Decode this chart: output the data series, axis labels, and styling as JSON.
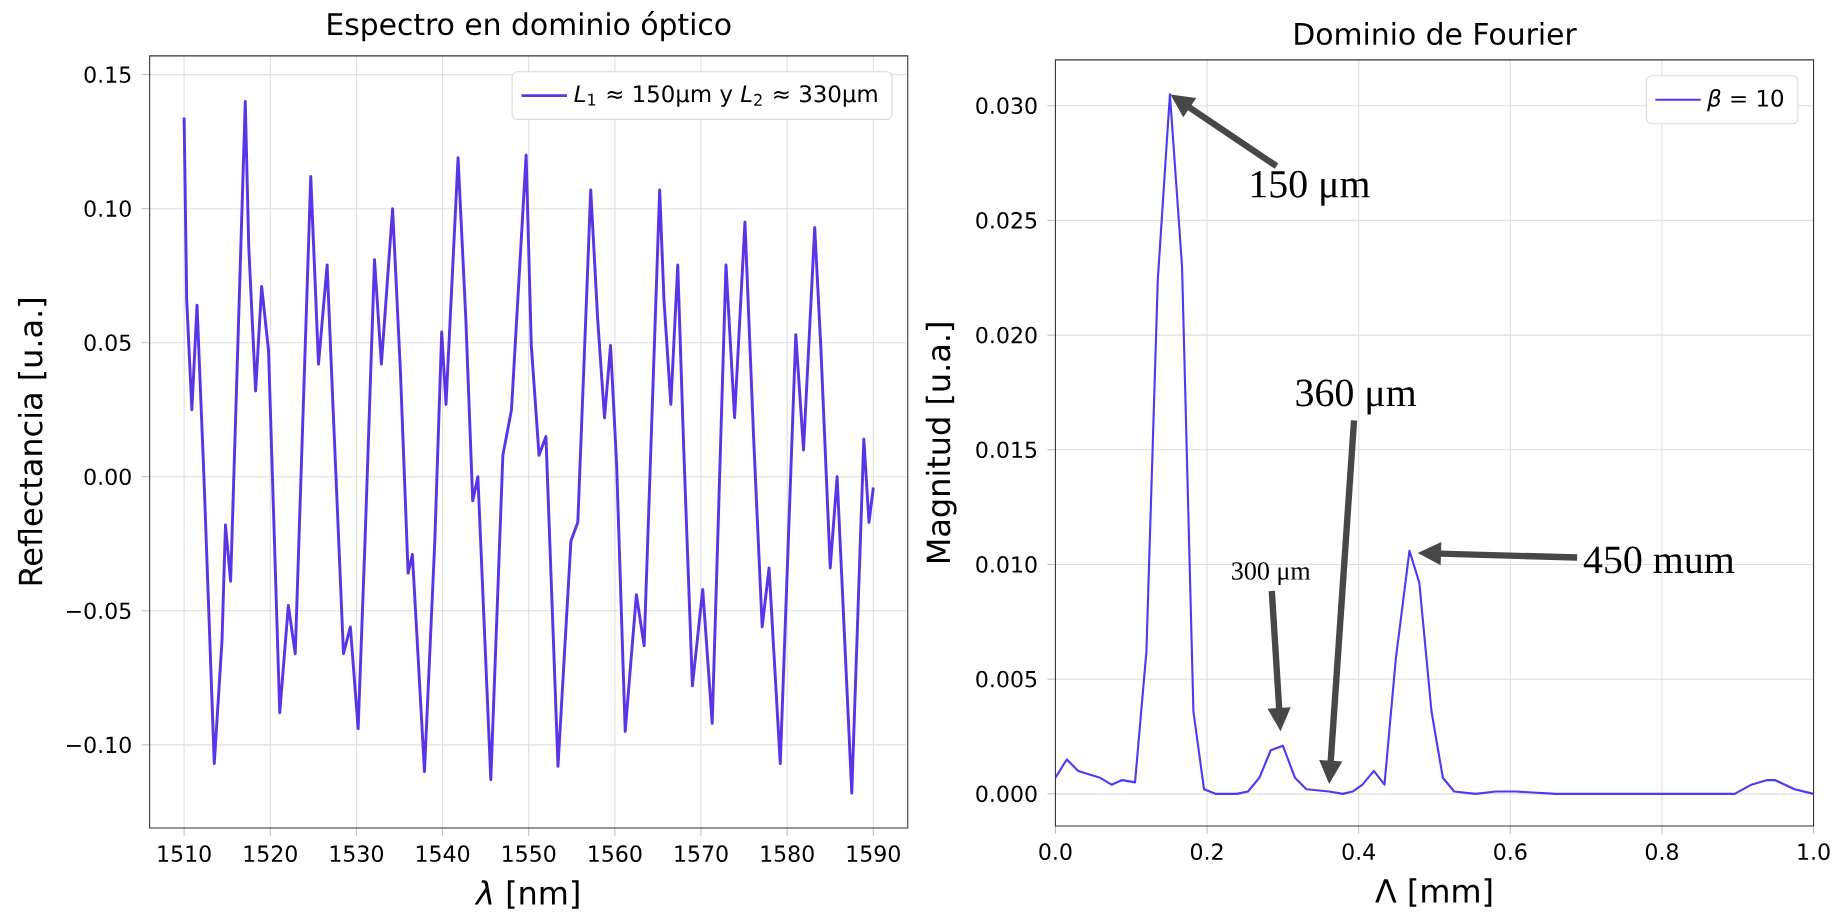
{
  "chart_data": [
    {
      "type": "line",
      "title": "Espectro en dominio óptico",
      "xlabel": "*λ* [nm]",
      "ylabel": "Reflectancia [u.a.]",
      "series": [
        {
          "name": "*L*$_{1}$ ≈ 150μm y *L*$_{2}$ ≈ 330μm",
          "color": "#5a35e8",
          "x": [
            1510,
            1510.3,
            1510.9,
            1511.5,
            1512.3,
            1513.5,
            1514.4,
            1514.8,
            1515.4,
            1517.1,
            1517.5,
            1518.3,
            1519.0,
            1519.8,
            1521.1,
            1522.1,
            1522.9,
            1524.7,
            1525.6,
            1526.6,
            1527.3,
            1528.5,
            1529.3,
            1530.2,
            1531.0,
            1532.1,
            1532.9,
            1534.2,
            1535.1,
            1536.0,
            1536.5,
            1537.9,
            1539.1,
            1539.9,
            1540.4,
            1541.8,
            1542.7,
            1543.5,
            1544.1,
            1545.6,
            1547.0,
            1548.0,
            1549.7,
            1550.3,
            1551.2,
            1552.0,
            1553.4,
            1554.9,
            1555.7,
            1557.2,
            1558.0,
            1558.8,
            1559.5,
            1560.2,
            1561.2,
            1562.5,
            1563.4,
            1565.2,
            1565.7,
            1566.5,
            1567.3,
            1568.0,
            1569.0,
            1570.2,
            1571.3,
            1572.9,
            1573.9,
            1575.1,
            1576.1,
            1577.1,
            1577.9,
            1579.2,
            1581.0,
            1581.9,
            1583.2,
            1583.9,
            1585.0,
            1585.8,
            1587.5,
            1588.9,
            1589.5,
            1590.0
          ],
          "values": [
            0.134,
            0.066,
            0.025,
            0.064,
            0.0,
            -0.107,
            -0.061,
            -0.018,
            -0.039,
            0.14,
            0.086,
            0.032,
            0.071,
            0.047,
            -0.088,
            -0.048,
            -0.066,
            0.112,
            0.042,
            0.079,
            0.025,
            -0.066,
            -0.056,
            -0.094,
            -0.024,
            0.081,
            0.042,
            0.1,
            0.04,
            -0.036,
            -0.029,
            -0.11,
            -0.024,
            0.054,
            0.027,
            0.119,
            0.059,
            -0.009,
            0.0,
            -0.113,
            0.008,
            0.025,
            0.12,
            0.049,
            0.008,
            0.015,
            -0.108,
            -0.024,
            -0.017,
            0.107,
            0.059,
            0.022,
            0.049,
            0.005,
            -0.095,
            -0.044,
            -0.063,
            0.107,
            0.066,
            0.027,
            0.079,
            0.01,
            -0.078,
            -0.042,
            -0.092,
            0.079,
            0.022,
            0.095,
            0.015,
            -0.056,
            -0.034,
            -0.107,
            0.053,
            0.01,
            0.093,
            0.049,
            -0.034,
            0.0,
            -0.118,
            0.014,
            -0.017,
            -0.004
          ]
        }
      ],
      "xlim": [
        1506,
        1594
      ],
      "ylim": [
        -0.131,
        0.157
      ],
      "xticks": [
        1510,
        1520,
        1530,
        1540,
        1550,
        1560,
        1570,
        1580,
        1590
      ],
      "yticks": [
        {
          "value": -0.1,
          "label": "−0.10"
        },
        {
          "value": -0.05,
          "label": "−0.05"
        },
        {
          "value": 0,
          "label": "0.00"
        },
        0.05,
        {
          "value": 0.1,
          "label": "0.10"
        },
        0.15
      ],
      "grid": true,
      "legend": "top right",
      "marker": "none",
      "line_style": "solid"
    },
    {
      "type": "line",
      "title": "Dominio de Fourier",
      "xlabel": "Λ [mm]",
      "ylabel": "Magnitud [u.a.]",
      "series": [
        {
          "name": "*β* = 10",
          "color": "#4b3bf5",
          "x": [
            0.0,
            0.015,
            0.03,
            0.059,
            0.074,
            0.088,
            0.105,
            0.12,
            0.135,
            0.151,
            0.167,
            0.182,
            0.196,
            0.211,
            0.239,
            0.254,
            0.269,
            0.284,
            0.3,
            0.316,
            0.331,
            0.361,
            0.379,
            0.392,
            0.405,
            0.42,
            0.434,
            0.449,
            0.467,
            0.48,
            0.496,
            0.511,
            0.526,
            0.554,
            0.581,
            0.607,
            0.66,
            0.896,
            0.918,
            0.939,
            0.949,
            0.975,
            1.0
          ],
          "values": [
            0.0007,
            0.0015,
            0.001,
            0.0007,
            0.0004,
            0.0006,
            0.0005,
            0.0062,
            0.0224,
            0.0305,
            0.023,
            0.0036,
            0.0002,
            0.0,
            0.0,
            0.0001,
            0.0007,
            0.0019,
            0.0021,
            0.0007,
            0.0002,
            0.0001,
            0.0,
            0.0001,
            0.0004,
            0.001,
            0.0004,
            0.0059,
            0.0106,
            0.0092,
            0.0036,
            0.0007,
            0.0001,
            0.0,
            0.0001,
            0.0001,
            0.0,
            0.0,
            0.0004,
            0.0006,
            0.0006,
            0.0002,
            0.0
          ]
        }
      ],
      "xlim": [
        0,
        1
      ],
      "ylim": [
        -0.0014,
        0.032
      ],
      "xticks": [
        {
          "value": 0,
          "label": "0.0"
        },
        0.2,
        0.4,
        0.6,
        0.8,
        {
          "value": 1,
          "label": "1.0"
        }
      ],
      "yticks": [
        {
          "value": 0,
          "label": "0.000"
        },
        {
          "value": 0.005,
          "label": "0.005"
        },
        {
          "value": 0.01,
          "label": "0.010"
        },
        {
          "value": 0.015,
          "label": "0.015"
        },
        {
          "value": 0.02,
          "label": "0.020"
        },
        {
          "value": 0.025,
          "label": "0.025"
        },
        {
          "value": 0.03,
          "label": "0.030"
        }
      ],
      "annotations": [
        {
          "text": "150 μm",
          "x": 0.151,
          "y": 0.0305
        },
        "300 μm",
        "360 μm",
        "450 mum"
      ],
      "grid": true,
      "legend": "top right",
      "marker": "none",
      "line_style": "solid"
    }
  ]
}
